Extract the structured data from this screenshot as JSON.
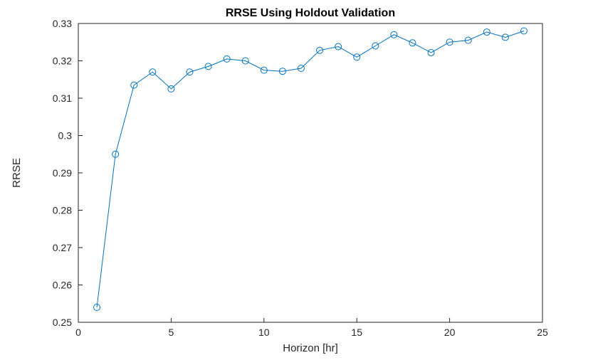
{
  "chart_data": {
    "type": "line",
    "title": "RRSE Using Holdout Validation",
    "xlabel": "Horizon [hr]",
    "ylabel": "RRSE",
    "xlim": [
      0,
      25
    ],
    "ylim": [
      0.25,
      0.33
    ],
    "xticks": [
      0,
      5,
      10,
      15,
      20,
      25
    ],
    "xtick_labels": [
      "0",
      "5",
      "10",
      "15",
      "20",
      "25"
    ],
    "yticks": [
      0.25,
      0.26,
      0.27,
      0.28,
      0.29,
      0.3,
      0.31,
      0.32,
      0.33
    ],
    "ytick_labels": [
      "0.25",
      "0.26",
      "0.27",
      "0.28",
      "0.29",
      "0.3",
      "0.31",
      "0.32",
      "0.33"
    ],
    "grid": false,
    "legend_position": "none",
    "line_color": "#0072BD",
    "axis_color": "#262626",
    "marker": "circle-open",
    "x": [
      1,
      2,
      3,
      4,
      5,
      6,
      7,
      8,
      9,
      10,
      11,
      12,
      13,
      14,
      15,
      16,
      17,
      18,
      19,
      20,
      21,
      22,
      23,
      24
    ],
    "y": [
      0.254,
      0.295,
      0.3135,
      0.317,
      0.3125,
      0.317,
      0.3185,
      0.3205,
      0.32,
      0.3175,
      0.3172,
      0.318,
      0.3228,
      0.3238,
      0.321,
      0.324,
      0.327,
      0.3248,
      0.3222,
      0.325,
      0.3255,
      0.3277,
      0.3263,
      0.328
    ]
  }
}
